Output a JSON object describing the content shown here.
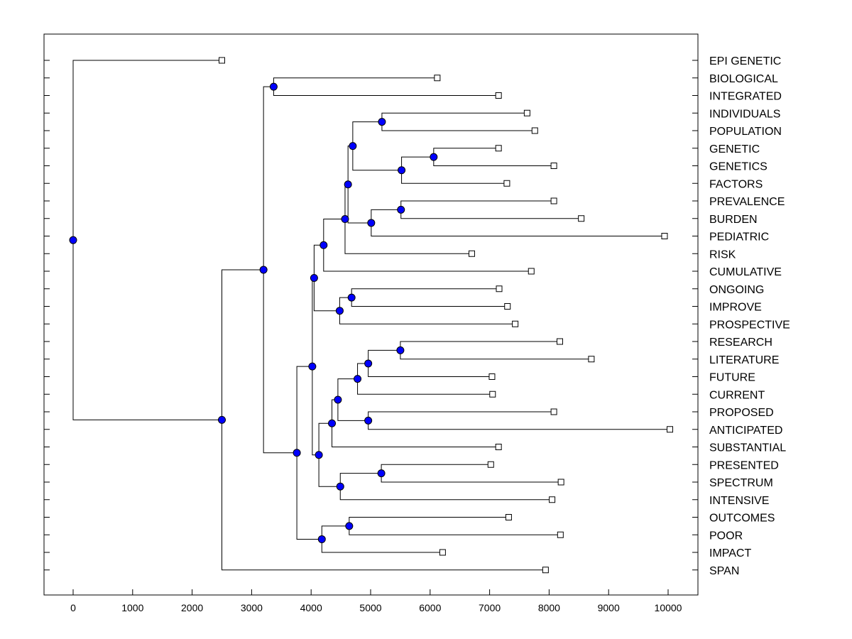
{
  "chart_data": {
    "type": "dendrogram",
    "xlim": [
      -500,
      10500
    ],
    "x_ticks": [
      0,
      1000,
      2000,
      3000,
      4000,
      5000,
      6000,
      7000,
      8000,
      9000,
      10000
    ],
    "colors": {
      "node": "#0000ff",
      "line": "#000000",
      "leaf_fill": "#ffffff"
    },
    "leaves": [
      {
        "label": "EPI GENETIC",
        "x": 2500
      },
      {
        "label": "BIOLOGICAL",
        "x": 6120
      },
      {
        "label": "INTEGRATED",
        "x": 7150
      },
      {
        "label": "INDIVIDUALS",
        "x": 7630
      },
      {
        "label": "POPULATION",
        "x": 7760
      },
      {
        "label": "GENETIC",
        "x": 7150
      },
      {
        "label": "GENETICS",
        "x": 8080
      },
      {
        "label": "FACTORS",
        "x": 7290
      },
      {
        "label": "PREVALENCE",
        "x": 8080
      },
      {
        "label": "BURDEN",
        "x": 8540
      },
      {
        "label": "PEDIATRIC",
        "x": 9940
      },
      {
        "label": "RISK",
        "x": 6700
      },
      {
        "label": "CUMULATIVE",
        "x": 7700
      },
      {
        "label": "ONGOING",
        "x": 7160
      },
      {
        "label": "IMPROVE",
        "x": 7300
      },
      {
        "label": "PROSPECTIVE",
        "x": 7430
      },
      {
        "label": "RESEARCH",
        "x": 8180
      },
      {
        "label": "LITERATURE",
        "x": 8710
      },
      {
        "label": "FUTURE",
        "x": 7040
      },
      {
        "label": "CURRENT",
        "x": 7050
      },
      {
        "label": "PROPOSED",
        "x": 8080
      },
      {
        "label": "ANTICIPATED",
        "x": 10030
      },
      {
        "label": "SUBSTANTIAL",
        "x": 7150
      },
      {
        "label": "PRESENTED",
        "x": 7020
      },
      {
        "label": "SPECTRUM",
        "x": 8200
      },
      {
        "label": "INTENSIVE",
        "x": 8050
      },
      {
        "label": "OUTCOMES",
        "x": 7320
      },
      {
        "label": "POOR",
        "x": 8190
      },
      {
        "label": "IMPACT",
        "x": 6210
      },
      {
        "label": "SPAN",
        "x": 7940
      }
    ],
    "merges": [
      {
        "id": "n1",
        "x": 6060,
        "children": [
          "GENETIC",
          "GENETICS"
        ]
      },
      {
        "id": "n2",
        "x": 5520,
        "children": [
          "n1",
          "FACTORS"
        ]
      },
      {
        "id": "n3",
        "x": 5190,
        "children": [
          "INDIVIDUALS",
          "POPULATION"
        ]
      },
      {
        "id": "n4",
        "x": 4700,
        "children": [
          "n3",
          "n2"
        ]
      },
      {
        "id": "n5",
        "x": 5510,
        "children": [
          "PREVALENCE",
          "BURDEN"
        ]
      },
      {
        "id": "n6",
        "x": 5010,
        "children": [
          "n5",
          "PEDIATRIC"
        ]
      },
      {
        "id": "n7",
        "x": 4620,
        "children": [
          "n4",
          "n6"
        ]
      },
      {
        "id": "n8",
        "x": 4570,
        "children": [
          "n7",
          "RISK"
        ]
      },
      {
        "id": "n9",
        "x": 4210,
        "children": [
          "n8",
          "CUMULATIVE"
        ]
      },
      {
        "id": "n10",
        "x": 4680,
        "children": [
          "ONGOING",
          "IMPROVE"
        ]
      },
      {
        "id": "n11",
        "x": 4480,
        "children": [
          "n10",
          "PROSPECTIVE"
        ]
      },
      {
        "id": "n12",
        "x": 4050,
        "children": [
          "n9",
          "n11"
        ]
      },
      {
        "id": "n13",
        "x": 3370,
        "children": [
          "BIOLOGICAL",
          "INTEGRATED"
        ]
      },
      {
        "id": "n14",
        "x": 5500,
        "children": [
          "RESEARCH",
          "LITERATURE"
        ]
      },
      {
        "id": "n15",
        "x": 4960,
        "children": [
          "n14",
          "FUTURE"
        ]
      },
      {
        "id": "n16",
        "x": 4780,
        "children": [
          "n15",
          "CURRENT"
        ]
      },
      {
        "id": "n17",
        "x": 4960,
        "children": [
          "PROPOSED",
          "ANTICIPATED"
        ]
      },
      {
        "id": "n18",
        "x": 4450,
        "children": [
          "n16",
          "n17"
        ]
      },
      {
        "id": "n19",
        "x": 4350,
        "children": [
          "n18",
          "SUBSTANTIAL"
        ]
      },
      {
        "id": "n20",
        "x": 5180,
        "children": [
          "PRESENTED",
          "SPECTRUM"
        ]
      },
      {
        "id": "n21",
        "x": 4490,
        "children": [
          "n20",
          "INTENSIVE"
        ]
      },
      {
        "id": "n22",
        "x": 4130,
        "children": [
          "n19",
          "n21"
        ]
      },
      {
        "id": "n23",
        "x": 4020,
        "children": [
          "n12",
          "n22"
        ]
      },
      {
        "id": "n24",
        "x": 4640,
        "children": [
          "OUTCOMES",
          "POOR"
        ]
      },
      {
        "id": "n25",
        "x": 4180,
        "children": [
          "n24",
          "IMPACT"
        ]
      },
      {
        "id": "n26",
        "x": 3760,
        "children": [
          "n23",
          "n25"
        ]
      },
      {
        "id": "n27",
        "x": 3200,
        "children": [
          "n13",
          "n26"
        ]
      },
      {
        "id": "n28",
        "x": 2500,
        "children": [
          "n27",
          "SPAN"
        ]
      },
      {
        "id": "n29",
        "x": 0,
        "children": [
          "EPI GENETIC",
          "n28"
        ]
      }
    ]
  }
}
